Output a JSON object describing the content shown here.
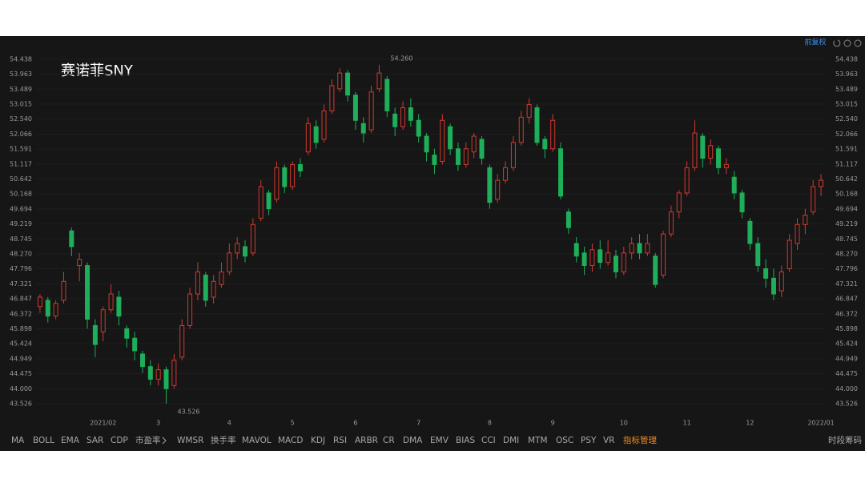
{
  "chart_data": {
    "type": "candlestick",
    "title": "赛诺菲SNY",
    "categories": [
      null,
      null,
      null,
      null,
      null,
      null,
      null,
      null,
      "2021/02",
      null,
      null,
      null,
      null,
      null,
      null,
      "3",
      null,
      null,
      null,
      null,
      null,
      null,
      null,
      null,
      "4",
      null,
      null,
      null,
      null,
      null,
      null,
      null,
      "5",
      null,
      null,
      null,
      null,
      null,
      null,
      null,
      "6",
      null,
      null,
      null,
      null,
      null,
      null,
      null,
      "7",
      null,
      null,
      null,
      null,
      null,
      null,
      null,
      null,
      "8",
      null,
      null,
      null,
      null,
      null,
      null,
      null,
      "9",
      null,
      null,
      null,
      null,
      null,
      null,
      null,
      null,
      "10",
      null,
      null,
      null,
      null,
      null,
      null,
      null,
      "11",
      null,
      null,
      null,
      null,
      null,
      null,
      null,
      "12",
      null,
      null,
      null,
      null,
      null,
      null,
      null,
      null,
      "2022/01"
    ],
    "open": [
      46.6,
      46.8,
      46.3,
      46.8,
      49.0,
      47.9,
      47.9,
      46.0,
      45.8,
      46.5,
      46.9,
      45.9,
      45.6,
      45.1,
      44.7,
      44.3,
      44.6,
      44.1,
      45.0,
      46.0,
      47.0,
      47.6,
      46.9,
      47.3,
      47.7,
      48.3,
      48.5,
      48.3,
      49.4,
      50.2,
      50.0,
      51.0,
      50.4,
      51.1,
      51.5,
      52.3,
      51.9,
      52.8,
      53.5,
      54.0,
      53.3,
      52.4,
      52.2,
      53.5,
      53.8,
      52.7,
      52.3,
      52.9,
      52.5,
      52.0,
      51.4,
      51.2,
      52.3,
      51.6,
      51.1,
      51.5,
      51.9,
      51.0,
      50.0,
      50.6,
      51.0,
      51.8,
      52.6,
      52.9,
      51.9,
      51.6,
      51.6,
      49.6,
      48.6,
      48.3,
      47.9,
      48.4,
      48.0,
      48.2,
      47.7,
      48.3,
      48.6,
      48.3,
      48.2,
      47.6,
      48.9,
      49.6,
      50.2,
      51.0,
      52.0,
      51.3,
      51.6,
      51.0,
      50.7,
      50.2,
      49.3,
      48.6,
      47.8,
      47.5,
      47.1,
      47.8,
      48.6,
      49.2,
      49.6,
      50.4
    ],
    "high": [
      47.0,
      46.9,
      46.8,
      47.7,
      49.1,
      48.3,
      48.0,
      46.2,
      46.6,
      47.3,
      47.1,
      46.0,
      45.8,
      45.2,
      44.9,
      44.8,
      44.7,
      45.1,
      46.2,
      47.2,
      48.0,
      47.7,
      47.6,
      48.0,
      48.6,
      48.8,
      48.7,
      49.4,
      50.6,
      50.3,
      51.2,
      51.1,
      51.2,
      51.3,
      52.6,
      52.5,
      53.0,
      53.8,
      54.15,
      54.1,
      53.4,
      52.6,
      53.6,
      54.26,
      53.9,
      52.9,
      53.1,
      53.2,
      52.7,
      52.1,
      51.6,
      52.7,
      52.4,
      51.8,
      51.8,
      52.1,
      52.0,
      51.1,
      50.8,
      51.2,
      52.0,
      52.8,
      53.2,
      53.0,
      52.0,
      52.7,
      51.8,
      49.7,
      48.8,
      48.5,
      48.6,
      48.7,
      48.7,
      48.4,
      48.5,
      48.8,
      48.9,
      48.9,
      48.3,
      49.0,
      49.8,
      50.3,
      51.2,
      52.5,
      52.1,
      51.9,
      51.7,
      51.3,
      50.9,
      50.3,
      49.4,
      48.8,
      48.1,
      47.8,
      47.9,
      48.9,
      49.4,
      49.7,
      50.6,
      50.8
    ],
    "low": [
      46.4,
      46.1,
      46.2,
      46.7,
      48.2,
      47.4,
      45.9,
      45.0,
      45.5,
      46.4,
      46.0,
      45.3,
      44.9,
      44.5,
      44.1,
      44.1,
      43.526,
      44.0,
      44.9,
      45.9,
      46.8,
      46.6,
      46.7,
      47.2,
      47.6,
      48.1,
      48.0,
      48.2,
      49.3,
      49.5,
      49.9,
      50.2,
      50.3,
      50.7,
      51.4,
      51.6,
      51.8,
      52.7,
      53.4,
      53.1,
      52.2,
      51.8,
      52.1,
      53.4,
      52.6,
      52.0,
      52.2,
      52.3,
      51.8,
      51.2,
      50.8,
      51.1,
      51.4,
      50.9,
      51.0,
      51.3,
      51.1,
      49.7,
      49.9,
      50.5,
      50.9,
      51.7,
      52.4,
      51.7,
      51.3,
      51.5,
      50.0,
      48.9,
      48.0,
      47.6,
      47.7,
      47.8,
      47.9,
      47.5,
      47.6,
      48.1,
      48.1,
      48.2,
      47.2,
      47.5,
      48.8,
      49.4,
      50.1,
      50.9,
      51.0,
      51.1,
      50.8,
      50.8,
      50.0,
      49.4,
      48.4,
      47.7,
      47.2,
      46.8,
      46.9,
      47.7,
      48.4,
      48.9,
      49.5,
      50.1
    ],
    "close": [
      46.9,
      46.3,
      46.7,
      47.4,
      48.5,
      48.1,
      46.2,
      45.4,
      46.5,
      47.0,
      46.3,
      45.6,
      45.2,
      44.7,
      44.3,
      44.6,
      44.0,
      44.9,
      46.0,
      47.0,
      47.7,
      46.8,
      47.4,
      47.7,
      48.3,
      48.6,
      48.2,
      49.2,
      50.4,
      49.7,
      51.0,
      50.4,
      51.1,
      50.9,
      52.4,
      51.8,
      52.8,
      53.6,
      54.0,
      53.3,
      52.5,
      52.1,
      53.4,
      54.0,
      52.8,
      52.3,
      52.9,
      52.5,
      52.0,
      51.5,
      51.1,
      52.5,
      51.6,
      51.1,
      51.6,
      52.0,
      51.3,
      49.9,
      50.6,
      51.0,
      51.8,
      52.6,
      53.0,
      51.8,
      51.6,
      52.5,
      50.1,
      49.1,
      48.2,
      47.9,
      48.4,
      48.0,
      48.3,
      47.7,
      48.3,
      48.6,
      48.3,
      48.6,
      47.3,
      48.9,
      49.6,
      50.2,
      51.0,
      52.1,
      51.3,
      51.7,
      51.0,
      51.1,
      50.2,
      49.6,
      48.6,
      47.9,
      47.5,
      47.0,
      47.7,
      48.7,
      49.2,
      49.5,
      50.4,
      50.6
    ],
    "up_color": "#d2392f",
    "down_color": "#1fae5a",
    "annotations": [
      {
        "value": 54.26,
        "label": "54.260"
      },
      {
        "value": 43.526,
        "label": "43.526"
      }
    ],
    "ylim": [
      43.22,
      54.74
    ],
    "yticks": [
      {
        "value": 54.438,
        "label": "54.438"
      },
      53.963,
      53.489,
      53.015,
      {
        "value": 52.54,
        "label": "52.540"
      },
      52.066,
      51.591,
      51.117,
      50.642,
      50.168,
      49.694,
      49.219,
      48.745,
      {
        "value": 48.27,
        "label": "48.270"
      },
      47.796,
      47.321,
      46.847,
      46.372,
      45.898,
      45.424,
      44.949,
      44.475,
      {
        "value": 44.0,
        "label": "44.000"
      },
      43.526
    ],
    "grid": true
  },
  "toolbar": {
    "adjust": "前复权",
    "indicators": [
      "MA",
      "BOLL",
      "EMA",
      "SAR",
      "CDP",
      "市盈率",
      "WMSR",
      "换手率",
      "MAVOL",
      "MACD",
      "KDJ",
      "RSI",
      "ARBR",
      "CR",
      "DMA",
      "EMV",
      "BIAS",
      "CCI",
      "DMI",
      "MTM",
      "OSC",
      "PSY",
      "VR"
    ],
    "manage": "指标管理",
    "right": [
      "时段",
      "筹码"
    ]
  }
}
